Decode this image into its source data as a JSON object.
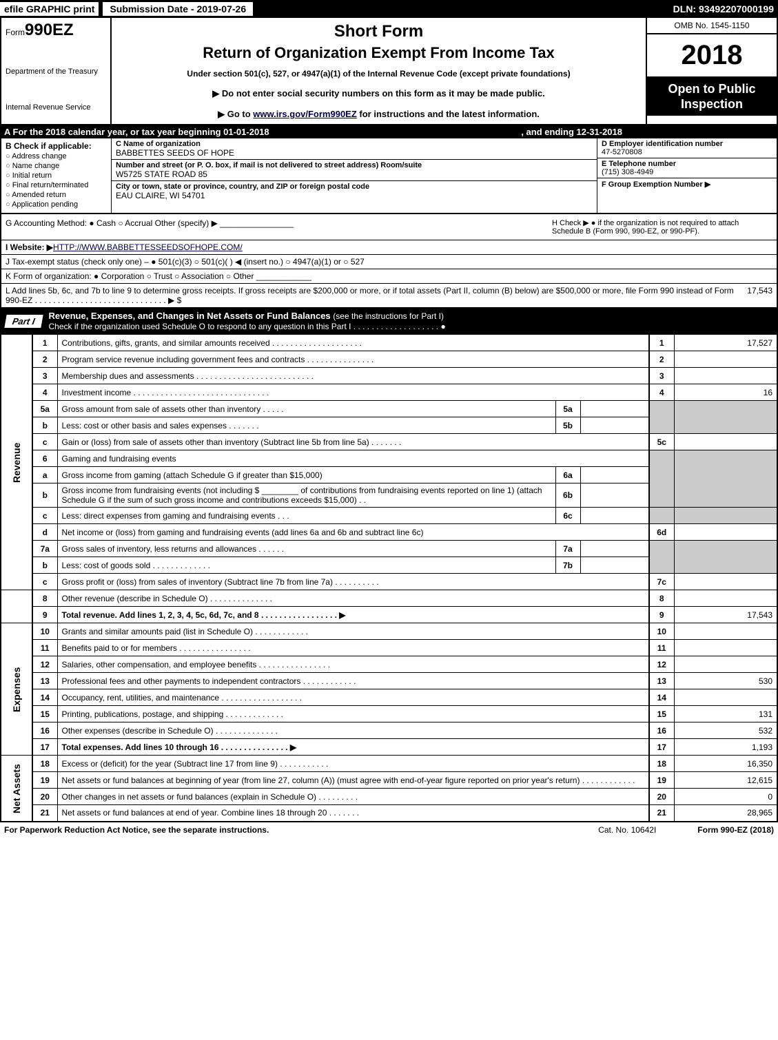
{
  "topbar": {
    "efile": "efile GRAPHIC print",
    "subdate": "Submission Date - 2019-07-26",
    "dln": "DLN: 93492207000199"
  },
  "header": {
    "form_prefix": "Form",
    "form_num": "990EZ",
    "dept1": "Department of the Treasury",
    "dept2": "Internal Revenue Service",
    "short_form": "Short Form",
    "title": "Return of Organization Exempt From Income Tax",
    "subtitle": "Under section 501(c), 527, or 4947(a)(1) of the Internal Revenue Code (except private foundations)",
    "line2": "▶ Do not enter social security numbers on this form as it may be made public.",
    "line3_pre": "▶ Go to ",
    "line3_link": "www.irs.gov/Form990EZ",
    "line3_post": " for instructions and the latest information.",
    "omb": "OMB No. 1545-1150",
    "year": "2018",
    "open": "Open to Public Inspection"
  },
  "row_a": {
    "text": "A  For the 2018 calendar year, or tax year beginning 01-01-2018",
    "ending": ", and ending 12-31-2018"
  },
  "col_b": {
    "label": "B  Check if applicable:",
    "opts": [
      "Address change",
      "Name change",
      "Initial return",
      "Final return/terminated",
      "Amended return",
      "Application pending"
    ]
  },
  "col_c": {
    "name_hdr": "C Name of organization",
    "name": "BABBETTES SEEDS OF HOPE",
    "addr_hdr": "Number and street (or P. O. box, if mail is not delivered to street address)   Room/suite",
    "addr": "W5725 STATE ROAD 85",
    "city_hdr": "City or town, state or province, country, and ZIP or foreign postal code",
    "city": "EAU CLAIRE, WI  54701"
  },
  "col_d": {
    "ein_hdr": "D Employer identification number",
    "ein": "47-5270808",
    "tel_hdr": "E Telephone number",
    "tel": "(715) 308-4949",
    "grp_hdr": "F Group Exemption Number  ▶"
  },
  "row_g": "G Accounting Method:   ● Cash   ○ Accrual   Other (specify) ▶ ________________",
  "row_h": "H   Check ▶ ● if the organization is not required to attach Schedule B (Form 990, 990-EZ, or 990-PF).",
  "row_i_pre": "I Website: ▶",
  "row_i_link": "HTTP://WWW.BABBETTESSEEDSOFHOPE.COM/",
  "row_j": "J Tax-exempt status (check only one) – ● 501(c)(3)  ○ 501(c)(  ) ◀ (insert no.)  ○ 4947(a)(1) or  ○ 527",
  "row_k": "K Form of organization:   ● Corporation   ○ Trust   ○ Association   ○ Other ____________",
  "row_l": {
    "text": "L Add lines 5b, 6c, and 7b to line 9 to determine gross receipts. If gross receipts are $200,000 or more, or if total assets (Part II, column (B) below) are $500,000 or more, file Form 990 instead of Form 990-EZ  .  .  .  .  .  .  .  .  .  .  .  .  .  .  .  .  .  .  .  .  .  .  .  .  .  .  .  .  .  ▶ $",
    "amt": "17,543"
  },
  "part1": {
    "tag": "Part I",
    "title": "Revenue, Expenses, and Changes in Net Assets or Fund Balances ",
    "sub": "(see the instructions for Part I)",
    "check": "Check if the organization used Schedule O to respond to any question in this Part I  .  .  .  .  .  .  .  .  .  .  .  .  .  .  .  .  .  .  .  ●"
  },
  "sections": {
    "revenue": "Revenue",
    "expenses": "Expenses",
    "netassets": "Net Assets"
  },
  "lines": {
    "l1": {
      "n": "1",
      "d": "Contributions, gifts, grants, and similar amounts received  .  .  .  .  .  .  .  .  .  .  .  .  .  .  .  .  .  .  .  .",
      "ln": "1",
      "v": "17,527"
    },
    "l2": {
      "n": "2",
      "d": "Program service revenue including government fees and contracts  .  .  .  .  .  .  .  .  .  .  .  .  .  .  .",
      "ln": "2",
      "v": ""
    },
    "l3": {
      "n": "3",
      "d": "Membership dues and assessments  .  .  .  .  .  .  .  .  .  .  .  .  .  .  .  .  .  .  .  .  .  .  .  .  .  .",
      "ln": "3",
      "v": ""
    },
    "l4": {
      "n": "4",
      "d": "Investment income  .  .  .  .  .  .  .  .  .  .  .  .  .  .  .  .  .  .  .  .  .  .  .  .  .  .  .  .  .  .",
      "ln": "4",
      "v": "16"
    },
    "l5a": {
      "n": "5a",
      "d": "Gross amount from sale of assets other than inventory  .  .  .  .  .",
      "sn": "5a",
      "sv": ""
    },
    "l5b": {
      "n": "b",
      "d": "Less: cost or other basis and sales expenses  .  .  .  .  .  .  .",
      "sn": "5b",
      "sv": ""
    },
    "l5c": {
      "n": "c",
      "d": "Gain or (loss) from sale of assets other than inventory (Subtract line 5b from line 5a)  .  .  .  .  .  .  .",
      "ln": "5c",
      "v": ""
    },
    "l6": {
      "n": "6",
      "d": "Gaming and fundraising events"
    },
    "l6a": {
      "n": "a",
      "d": "Gross income from gaming (attach Schedule G if greater than $15,000)",
      "sn": "6a",
      "sv": ""
    },
    "l6b": {
      "n": "b",
      "d": "Gross income from fundraising events (not including $ ________ of contributions from fundraising events reported on line 1) (attach Schedule G if the sum of such gross income and contributions exceeds $15,000)    .  .",
      "sn": "6b",
      "sv": ""
    },
    "l6c": {
      "n": "c",
      "d": "Less: direct expenses from gaming and fundraising events    .  .  .",
      "sn": "6c",
      "sv": ""
    },
    "l6d": {
      "n": "d",
      "d": "Net income or (loss) from gaming and fundraising events (add lines 6a and 6b and subtract line 6c)",
      "ln": "6d",
      "v": ""
    },
    "l7a": {
      "n": "7a",
      "d": "Gross sales of inventory, less returns and allowances  .  .  .  .  .  .",
      "sn": "7a",
      "sv": ""
    },
    "l7b": {
      "n": "b",
      "d": "Less: cost of goods sold        .  .  .  .  .  .  .  .  .  .  .  .  .",
      "sn": "7b",
      "sv": ""
    },
    "l7c": {
      "n": "c",
      "d": "Gross profit or (loss) from sales of inventory (Subtract line 7b from line 7a)  .  .  .  .  .  .  .  .  .  .",
      "ln": "7c",
      "v": ""
    },
    "l8": {
      "n": "8",
      "d": "Other revenue (describe in Schedule O)            .  .  .  .  .  .  .  .  .  .  .  .  .  .",
      "ln": "8",
      "v": ""
    },
    "l9": {
      "n": "9",
      "d": "Total revenue. Add lines 1, 2, 3, 4, 5c, 6d, 7c, and 8  .  .  .  .  .  .  .  .  .  .  .  .  .  .  .  .  .   ▶",
      "ln": "9",
      "v": "17,543",
      "bold": true
    },
    "l10": {
      "n": "10",
      "d": "Grants and similar amounts paid (list in Schedule O)        .  .  .  .  .  .  .  .  .  .  .  .",
      "ln": "10",
      "v": ""
    },
    "l11": {
      "n": "11",
      "d": "Benefits paid to or for members          .  .  .  .  .  .  .  .  .  .  .  .  .  .  .  .",
      "ln": "11",
      "v": ""
    },
    "l12": {
      "n": "12",
      "d": "Salaries, other compensation, and employee benefits  .  .  .  .  .  .  .  .  .  .  .  .  .  .  .  .",
      "ln": "12",
      "v": ""
    },
    "l13": {
      "n": "13",
      "d": "Professional fees and other payments to independent contractors  .  .  .  .  .  .  .  .  .  .  .  .",
      "ln": "13",
      "v": "530"
    },
    "l14": {
      "n": "14",
      "d": "Occupancy, rent, utilities, and maintenance  .  .  .  .  .  .  .  .  .  .  .  .  .  .  .  .  .  .",
      "ln": "14",
      "v": ""
    },
    "l15": {
      "n": "15",
      "d": "Printing, publications, postage, and shipping        .  .  .  .  .  .  .  .  .  .  .  .  .",
      "ln": "15",
      "v": "131"
    },
    "l16": {
      "n": "16",
      "d": "Other expenses (describe in Schedule O)        .  .  .  .  .  .  .  .  .  .  .  .  .  .",
      "ln": "16",
      "v": "532"
    },
    "l17": {
      "n": "17",
      "d": "Total expenses. Add lines 10 through 16        .  .  .  .  .  .  .  .  .  .  .  .  .  .  .   ▶",
      "ln": "17",
      "v": "1,193",
      "bold": true
    },
    "l18": {
      "n": "18",
      "d": "Excess or (deficit) for the year (Subtract line 17 from line 9)      .  .  .  .  .  .  .  .  .  .  .",
      "ln": "18",
      "v": "16,350"
    },
    "l19": {
      "n": "19",
      "d": "Net assets or fund balances at beginning of year (from line 27, column (A)) (must agree with end-of-year figure reported on prior year's return)        .  .  .  .  .  .  .  .  .  .  .  .",
      "ln": "19",
      "v": "12,615"
    },
    "l20": {
      "n": "20",
      "d": "Other changes in net assets or fund balances (explain in Schedule O)    .  .  .  .  .  .  .  .  .",
      "ln": "20",
      "v": "0"
    },
    "l21": {
      "n": "21",
      "d": "Net assets or fund balances at end of year. Combine lines 18 through 20      .  .  .  .  .  .  .",
      "ln": "21",
      "v": "28,965"
    }
  },
  "footer": {
    "left": "For Paperwork Reduction Act Notice, see the separate instructions.",
    "cat": "Cat. No. 10642I",
    "right": "Form 990-EZ (2018)"
  }
}
